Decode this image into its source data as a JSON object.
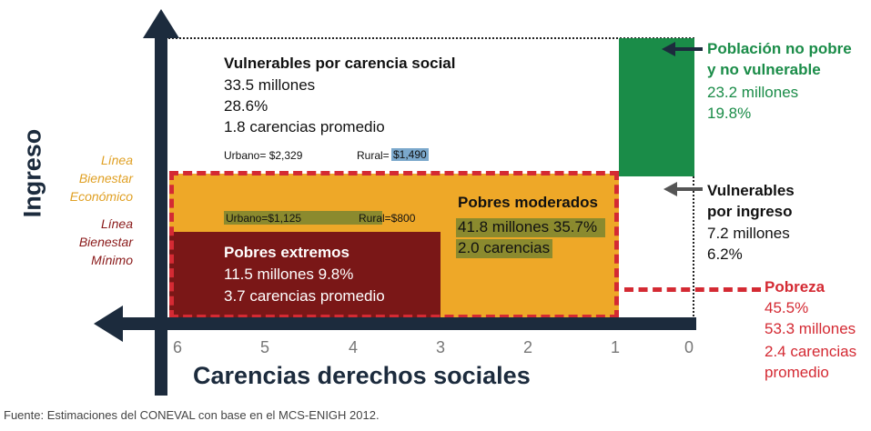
{
  "axis": {
    "y_title": "Ingreso",
    "x_title": "Carencias derechos sociales",
    "x_ticks": [
      "6",
      "5",
      "4",
      "3",
      "2",
      "1",
      "0"
    ]
  },
  "lines": {
    "bienestar_economico": "Línea\nBienestar\nEconómico",
    "bienestar_minimo": "Línea\nBienestar\nMínimo"
  },
  "vulnerables_carencia": {
    "title": "Vulnerables por carencia social",
    "millones": "33.5 millones",
    "percent": "28.6%",
    "carencias": "1.8 carencias promedio",
    "urbano": "Urbano= $2,329",
    "rural_label": "Rural=",
    "rural_value": "$1,490"
  },
  "pobres_extremos": {
    "title": "Pobres extremos",
    "line1": "11.5 millones 9.8%",
    "line2": "3.7 carencias promedio"
  },
  "pobres_moderados": {
    "title": "Pobres moderados",
    "line1": "41.8 millones 35.7%",
    "line2": "2.0 carencias",
    "urbano": "Urbano=$1,125",
    "rural": "Rural=$800"
  },
  "no_pobre": {
    "title": "Población no pobre\ny no vulnerable",
    "millones": "23.2 millones",
    "percent": "19.8%"
  },
  "vulnerables_ingreso": {
    "title": "Vulnerables\npor ingreso",
    "millones": "7.2 millones",
    "percent": "6.2%"
  },
  "pobreza": {
    "title": "Pobreza",
    "percent": "45.5%",
    "millones": "53.3 millones",
    "carencias": "2.4 carencias\npromedio"
  },
  "source": "Fuente: Estimaciones del CONEVAL con base en el MCS-ENIGH 2012.",
  "colors": {
    "navy": "#1c2b3d",
    "orange": "#eea828",
    "maroon": "#7a1717",
    "green": "#1a8c48",
    "red_dash": "#d42a33",
    "yellow_label": "#e0a024",
    "maroon_label": "#8a1a1a",
    "olive": "#8b8a2e",
    "blue_hl": "#7ba8cc"
  }
}
